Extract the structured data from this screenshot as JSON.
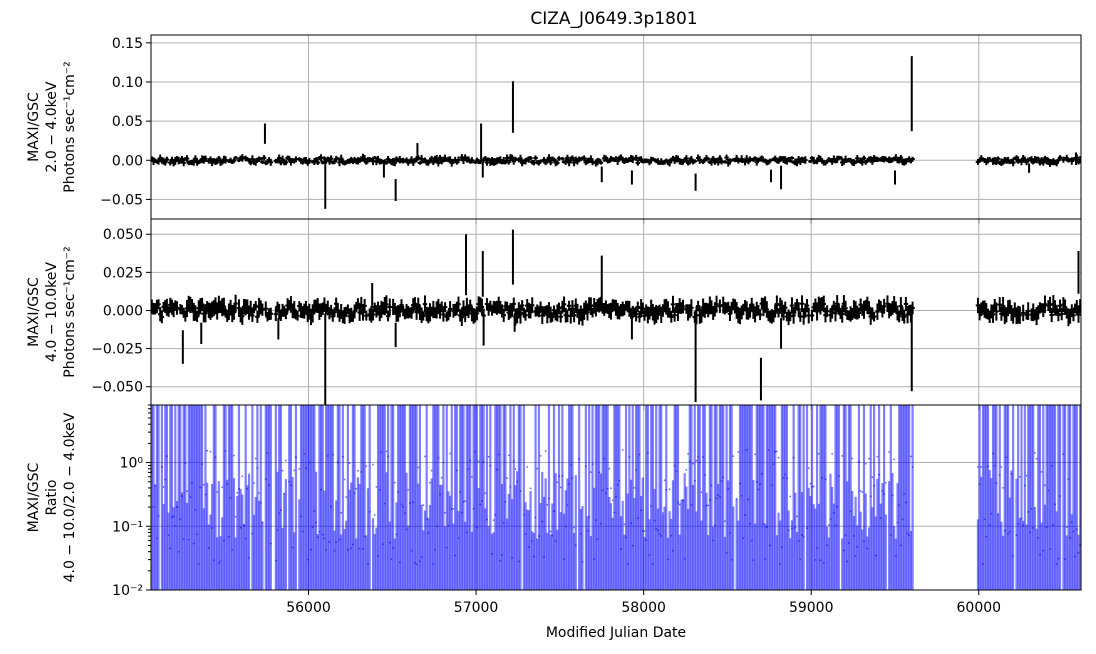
{
  "chart_data": {
    "type": "scatter",
    "title": "CIZA_J0649.3p1801",
    "xlabel": "Modified Julian Date",
    "xlim": [
      55060,
      60610
    ],
    "x_ticks": [
      56000,
      57000,
      58000,
      59000,
      60000
    ],
    "x_tick_labels": [
      "56000",
      "57000",
      "58000",
      "59000",
      "60000"
    ],
    "grid": true,
    "panels": [
      {
        "name": "soft",
        "ylabel_lines": [
          "MAXI/GSC",
          "2.0 − 4.0keV",
          "Photons sec⁻¹cm⁻²"
        ],
        "ylim": [
          -0.075,
          0.16
        ],
        "y_ticks": [
          -0.05,
          0.0,
          0.05,
          0.1,
          0.15
        ],
        "y_tick_labels": [
          "−0.05",
          "0.00",
          "0.05",
          "0.10",
          "0.15"
        ],
        "scale": "linear",
        "color": "#000000",
        "spikes": [
          {
            "x": 55740,
            "y": 0.034,
            "err": 0.013
          },
          {
            "x": 56100,
            "y": -0.032,
            "err": 0.03
          },
          {
            "x": 56450,
            "y": -0.012,
            "err": 0.01
          },
          {
            "x": 56520,
            "y": -0.038,
            "err": 0.014
          },
          {
            "x": 56650,
            "y": 0.014,
            "err": 0.008
          },
          {
            "x": 57030,
            "y": 0.022,
            "err": 0.025
          },
          {
            "x": 57040,
            "y": -0.012,
            "err": 0.01
          },
          {
            "x": 57220,
            "y": 0.068,
            "err": 0.033
          },
          {
            "x": 57750,
            "y": -0.018,
            "err": 0.01
          },
          {
            "x": 57930,
            "y": -0.022,
            "err": 0.009
          },
          {
            "x": 58310,
            "y": -0.028,
            "err": 0.011
          },
          {
            "x": 58760,
            "y": -0.02,
            "err": 0.008
          },
          {
            "x": 58820,
            "y": -0.022,
            "err": 0.015
          },
          {
            "x": 59500,
            "y": -0.022,
            "err": 0.009
          },
          {
            "x": 59600,
            "y": 0.085,
            "err": 0.048
          },
          {
            "x": 60300,
            "y": -0.01,
            "err": 0.006
          },
          {
            "x": 60580,
            "y": 0.002,
            "err": 0.008
          }
        ]
      },
      {
        "name": "hard",
        "ylabel_lines": [
          "MAXI/GSC",
          "4.0 − 10.0keV",
          "Photons sec⁻¹cm⁻²"
        ],
        "ylim": [
          -0.062,
          0.06
        ],
        "y_ticks": [
          -0.05,
          -0.025,
          0.0,
          0.025,
          0.05
        ],
        "y_tick_labels": [
          "−0.050",
          "−0.025",
          "0.000",
          "0.025",
          "0.050"
        ],
        "scale": "linear",
        "color": "#000000",
        "spikes": [
          {
            "x": 55250,
            "y": -0.024,
            "err": 0.011
          },
          {
            "x": 55360,
            "y": -0.015,
            "err": 0.007
          },
          {
            "x": 55820,
            "y": -0.012,
            "err": 0.007
          },
          {
            "x": 56100,
            "y": -0.032,
            "err": 0.03
          },
          {
            "x": 56380,
            "y": 0.01,
            "err": 0.008
          },
          {
            "x": 56520,
            "y": -0.016,
            "err": 0.008
          },
          {
            "x": 56940,
            "y": 0.03,
            "err": 0.02
          },
          {
            "x": 57040,
            "y": 0.024,
            "err": 0.015
          },
          {
            "x": 57045,
            "y": -0.015,
            "err": 0.008
          },
          {
            "x": 57220,
            "y": 0.035,
            "err": 0.018
          },
          {
            "x": 57230,
            "y": -0.008,
            "err": 0.006
          },
          {
            "x": 57750,
            "y": 0.02,
            "err": 0.016
          },
          {
            "x": 57930,
            "y": -0.012,
            "err": 0.007
          },
          {
            "x": 58310,
            "y": -0.03,
            "err": 0.03
          },
          {
            "x": 58700,
            "y": -0.045,
            "err": 0.014
          },
          {
            "x": 58820,
            "y": -0.015,
            "err": 0.01
          },
          {
            "x": 59600,
            "y": -0.027,
            "err": 0.026
          },
          {
            "x": 60595,
            "y": 0.025,
            "err": 0.014
          }
        ]
      },
      {
        "name": "ratio",
        "ylabel_lines": [
          "MAXI/GSC",
          "Ratio",
          "4.0 − 10.0/2.0 − 4.0keV"
        ],
        "ylim": [
          0.01,
          8
        ],
        "y_ticks": [
          0.01,
          0.1,
          1
        ],
        "y_tick_labels": [
          "10⁻²",
          "10⁻¹",
          "10⁰"
        ],
        "scale": "log",
        "color": "#0000ff"
      }
    ],
    "observation_windows": [
      [
        55060,
        55780
      ],
      [
        55800,
        59610
      ],
      [
        59990,
        60610
      ]
    ],
    "bin_days": 10
  }
}
